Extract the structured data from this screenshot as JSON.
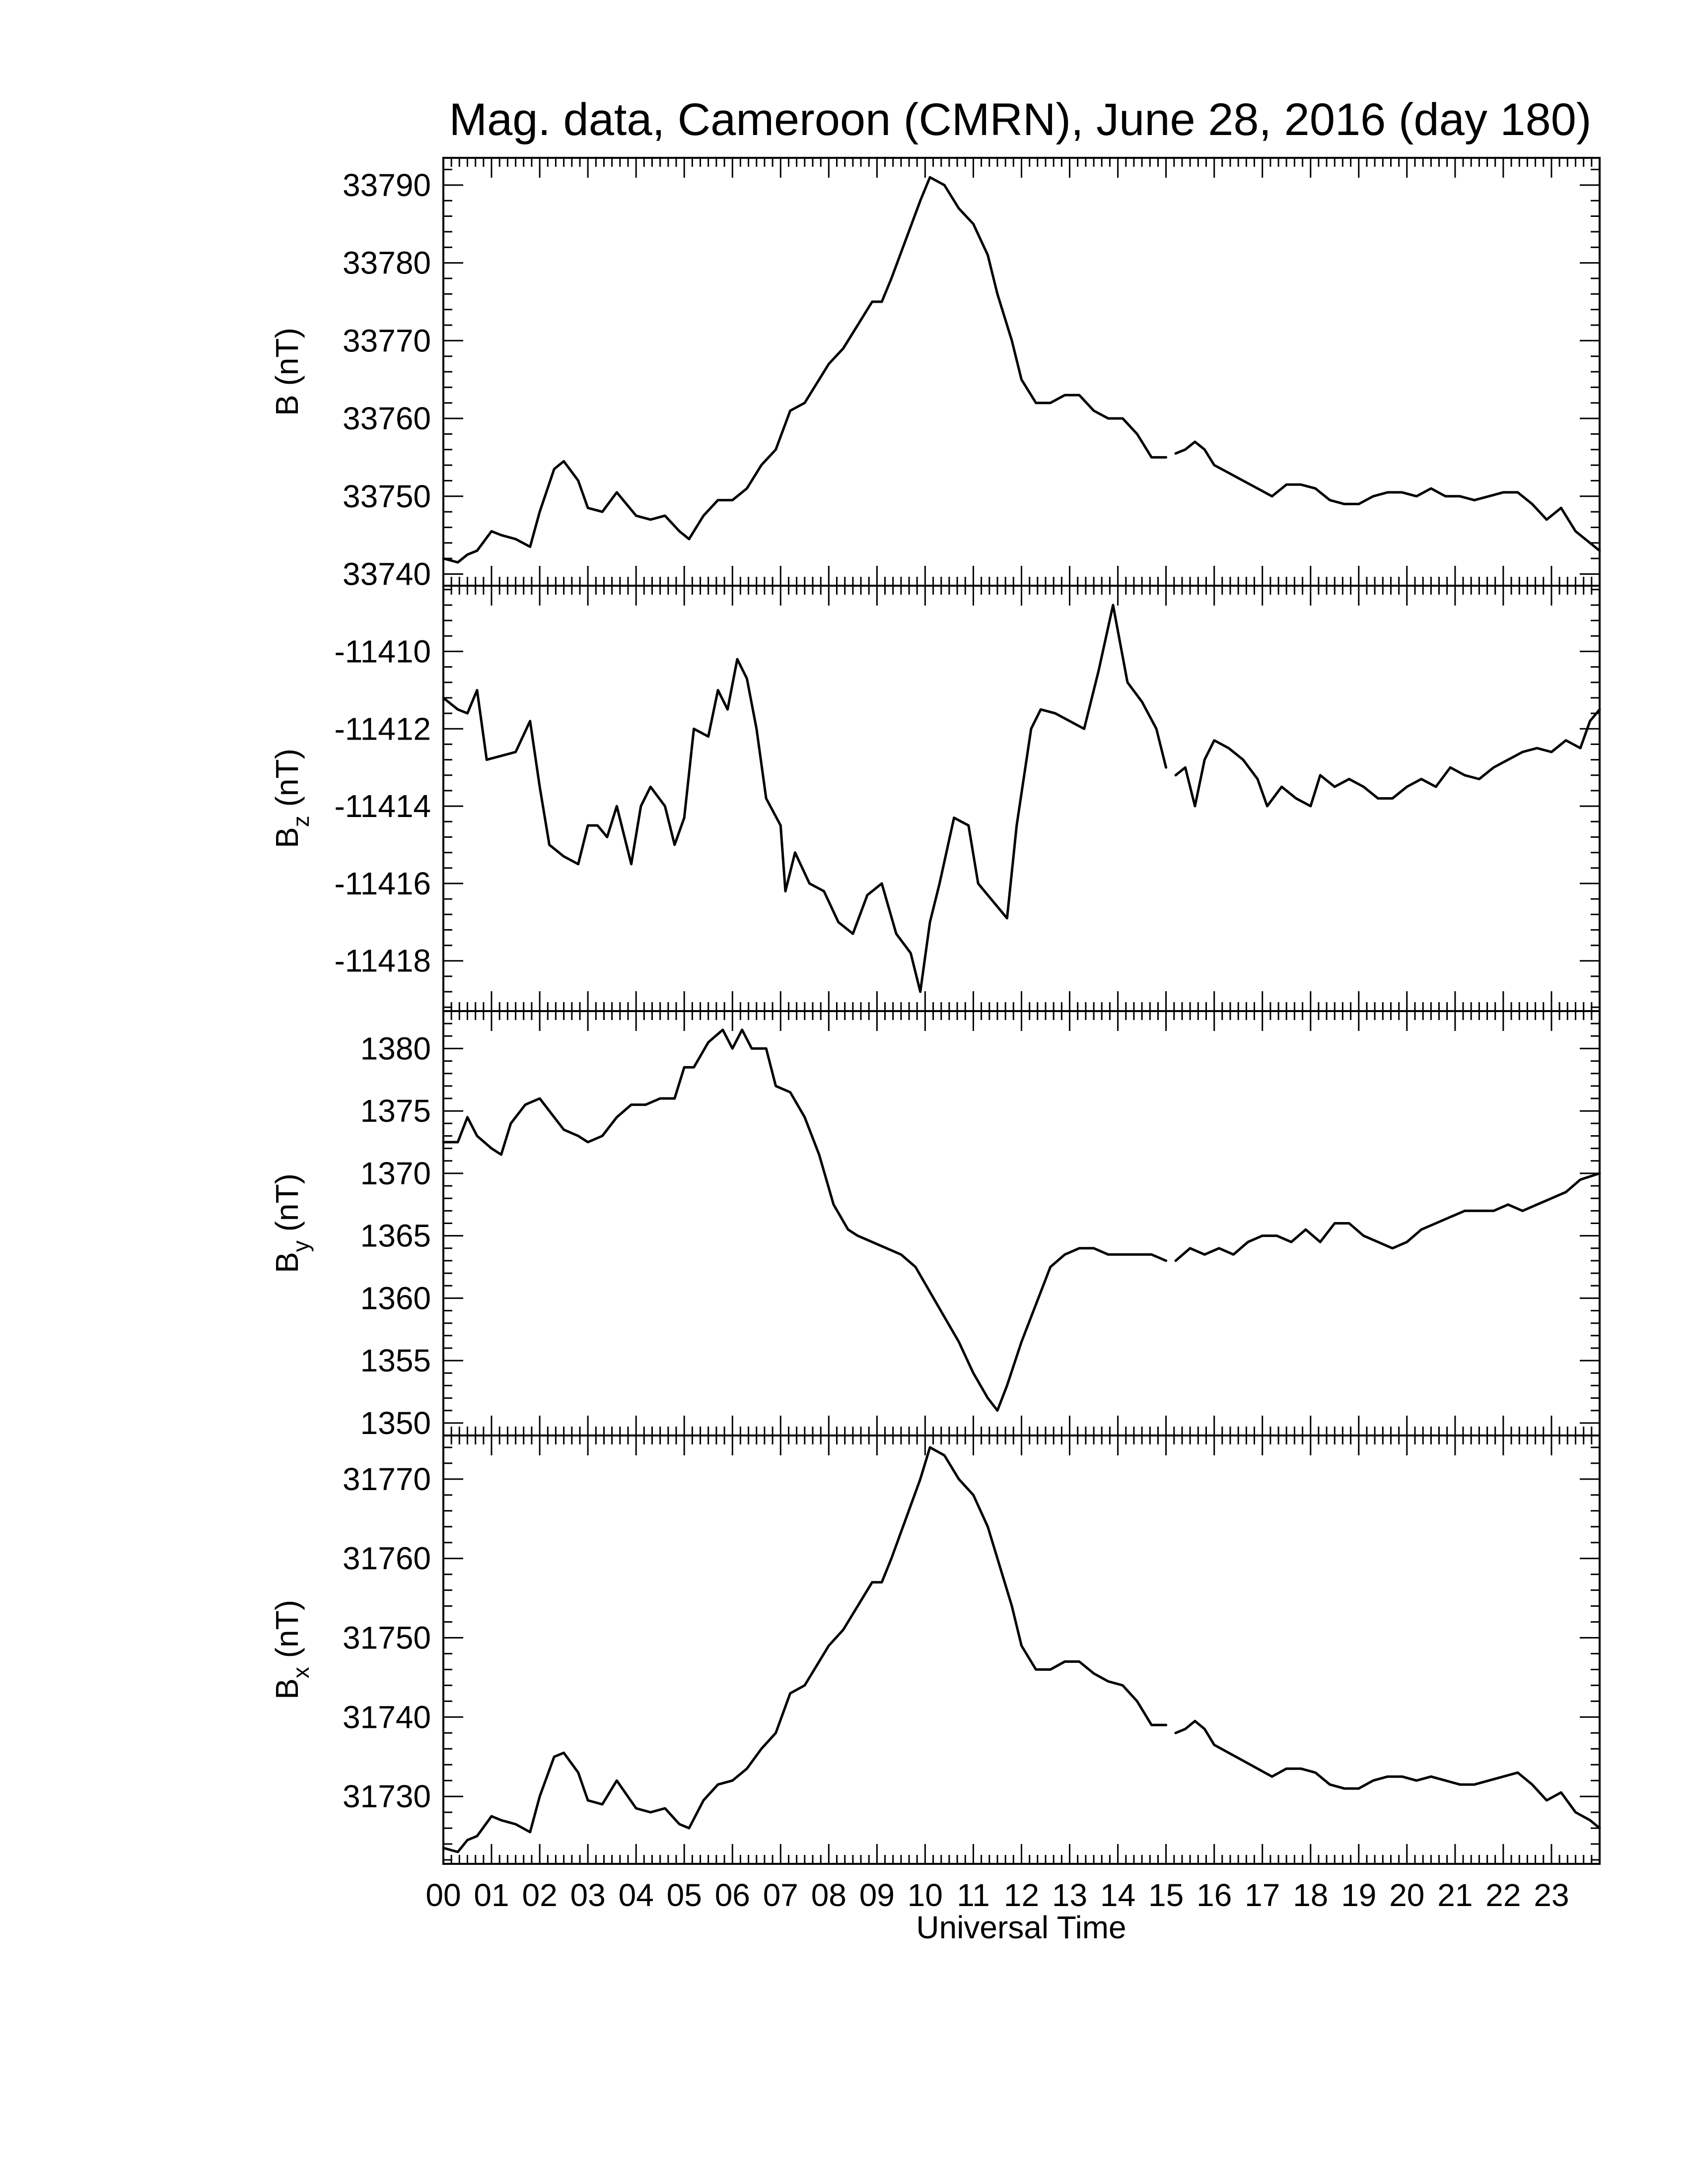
{
  "figure": {
    "title": "Mag. data, Cameroon (CMRN), June 28, 2016 (day 180)",
    "x_axis_label": "Universal Time",
    "x_tick_labels": [
      "00",
      "01",
      "02",
      "03",
      "04",
      "05",
      "06",
      "07",
      "08",
      "09",
      "10",
      "11",
      "12",
      "13",
      "14",
      "15",
      "16",
      "17",
      "18",
      "19",
      "20",
      "21",
      "22",
      "23"
    ]
  },
  "colors": {
    "trace": "#000000",
    "frame": "#000000",
    "background": "#ffffff"
  },
  "chart_data": [
    {
      "type": "line",
      "panel": "B",
      "ylabel_main": "B",
      "ylabel_sub": "",
      "ylabel_unit": "(nT)",
      "yticks": [
        33740,
        33750,
        33760,
        33770,
        33780,
        33790
      ],
      "ytick_labels": [
        "33740",
        "33750",
        "33760",
        "33770",
        "33780",
        "33790"
      ],
      "ylim": [
        33738.5,
        33793.5
      ],
      "xlim": [
        0,
        24
      ],
      "grid": false,
      "series": [
        {
          "x": [
            0,
            0.3,
            0.5,
            0.7,
            1.0,
            1.2,
            1.5,
            1.8,
            2.0,
            2.3,
            2.5,
            2.8,
            3.0,
            3.3,
            3.6,
            4.0,
            4.3,
            4.6,
            4.9,
            5.1,
            5.4,
            5.7,
            6.0,
            6.3,
            6.6,
            6.9,
            7.2,
            7.5,
            7.8,
            8.0,
            8.3,
            8.6,
            8.9,
            9.1,
            9.3,
            9.6,
            9.9,
            10.1,
            10.4,
            10.7,
            11.0,
            11.3,
            11.5,
            11.8,
            12.0,
            12.3,
            12.6,
            12.9,
            13.2,
            13.5,
            13.8,
            14.1,
            14.4,
            14.7,
            15.0
          ],
          "y": [
            33742,
            33741.5,
            33742.5,
            33743,
            33745.5,
            33745,
            33744.5,
            33743.5,
            33748,
            33753.5,
            33754.5,
            33752,
            33748.5,
            33748,
            33750.5,
            33747.5,
            33747,
            33747.5,
            33745.5,
            33744.5,
            33747.5,
            33749.5,
            33749.5,
            33751,
            33754,
            33756,
            33761,
            33762,
            33765,
            33767,
            33769,
            33772,
            33775,
            33775,
            33778,
            33783,
            33788,
            33791,
            33790,
            33787,
            33785,
            33781,
            33776,
            33770,
            33765,
            33762,
            33762,
            33763,
            33763,
            33761,
            33760,
            33760,
            33758,
            33755,
            33755
          ]
        },
        {
          "x": [
            15.2,
            15.4,
            15.6,
            15.8,
            16.0,
            16.3,
            16.6,
            16.9,
            17.2,
            17.5,
            17.8,
            18.1,
            18.4,
            18.7,
            19.0,
            19.3,
            19.6,
            19.9,
            20.2,
            20.5,
            20.8,
            21.1,
            21.4,
            21.7,
            22.0,
            22.3,
            22.6,
            22.9,
            23.2,
            23.5,
            23.8,
            24.0
          ],
          "y": [
            33755.5,
            33756,
            33757,
            33756,
            33754,
            33753,
            33752,
            33751,
            33750,
            33751.5,
            33751.5,
            33751,
            33749.5,
            33749,
            33749,
            33750,
            33750.5,
            33750.5,
            33750,
            33751,
            33750,
            33750,
            33749.5,
            33750,
            33750.5,
            33750.5,
            33749,
            33747,
            33748.5,
            33745.5,
            33744,
            33743
          ]
        }
      ]
    },
    {
      "type": "line",
      "panel": "Bz",
      "ylabel_main": "B",
      "ylabel_sub": "z",
      "ylabel_unit": "(nT)",
      "yticks": [
        -11410,
        -11412,
        -11414,
        -11416,
        -11418
      ],
      "ytick_labels": [
        "-11410",
        "-11412",
        "-11414",
        "-11416",
        "-11418"
      ],
      "ylim": [
        -11419.3,
        -11408.3
      ],
      "xlim": [
        0,
        24
      ],
      "grid": false,
      "series": [
        {
          "x": [
            0,
            0.3,
            0.5,
            0.7,
            0.9,
            1.2,
            1.5,
            1.8,
            2.0,
            2.2,
            2.5,
            2.8,
            3.0,
            3.2,
            3.4,
            3.6,
            3.9,
            4.1,
            4.3,
            4.6,
            4.8,
            5.0,
            5.2,
            5.5,
            5.7,
            5.9,
            6.1,
            6.3,
            6.5,
            6.7,
            7.0,
            7.1,
            7.3,
            7.6,
            7.9,
            8.2,
            8.5,
            8.8,
            9.1,
            9.4,
            9.7,
            9.9,
            10.1,
            10.3,
            10.6,
            10.9,
            11.1,
            11.3,
            11.5,
            11.7,
            11.9,
            12.2,
            12.4,
            12.7,
            13.0,
            13.3,
            13.6,
            13.9,
            14.2,
            14.5,
            14.8,
            15.0
          ],
          "y": [
            -11411.2,
            -11411.5,
            -11411.6,
            -11411.0,
            -11412.8,
            -11412.7,
            -11412.6,
            -11411.8,
            -11413.5,
            -11415.0,
            -11415.3,
            -11415.5,
            -11414.5,
            -11414.5,
            -11414.8,
            -11414.0,
            -11415.5,
            -11414.0,
            -11413.5,
            -11414.0,
            -11415.0,
            -11414.3,
            -11412.0,
            -11412.2,
            -11411.0,
            -11411.5,
            -11410.2,
            -11410.7,
            -11412.0,
            -11413.8,
            -11414.5,
            -11416.2,
            -11415.2,
            -11416.0,
            -11416.2,
            -11417.0,
            -11417.3,
            -11416.3,
            -11416.0,
            -11417.3,
            -11417.8,
            -11418.8,
            -11417.0,
            -11416.0,
            -11414.3,
            -11414.5,
            -11416.0,
            -11416.3,
            -11416.6,
            -11416.9,
            -11414.5,
            -11412.0,
            -11411.5,
            -11411.6,
            -11411.8,
            -11412.0,
            -11410.5,
            -11408.8,
            -11410.8,
            -11411.3,
            -11412.0,
            -11413.0
          ]
        },
        {
          "x": [
            15.2,
            15.4,
            15.6,
            15.8,
            16.0,
            16.3,
            16.6,
            16.9,
            17.1,
            17.4,
            17.7,
            18.0,
            18.2,
            18.5,
            18.8,
            19.1,
            19.4,
            19.7,
            20.0,
            20.3,
            20.6,
            20.9,
            21.2,
            21.5,
            21.8,
            22.1,
            22.4,
            22.7,
            23.0,
            23.3,
            23.6,
            23.8,
            24.0
          ],
          "y": [
            -11413.2,
            -11413.0,
            -11414.0,
            -11412.8,
            -11412.3,
            -11412.5,
            -11412.8,
            -11413.3,
            -11414.0,
            -11413.5,
            -11413.8,
            -11414.0,
            -11413.2,
            -11413.5,
            -11413.3,
            -11413.5,
            -11413.8,
            -11413.8,
            -11413.5,
            -11413.3,
            -11413.5,
            -11413.0,
            -11413.2,
            -11413.3,
            -11413.0,
            -11412.8,
            -11412.6,
            -11412.5,
            -11412.6,
            -11412.3,
            -11412.5,
            -11411.8,
            -11411.5
          ]
        }
      ]
    },
    {
      "type": "line",
      "panel": "By",
      "ylabel_main": "B",
      "ylabel_sub": "y",
      "ylabel_unit": "(nT)",
      "yticks": [
        1350,
        1355,
        1360,
        1365,
        1370,
        1375,
        1380
      ],
      "ytick_labels": [
        "1350",
        "1355",
        "1360",
        "1365",
        "1370",
        "1375",
        "1380"
      ],
      "ylim": [
        1349.0,
        1383.0
      ],
      "xlim": [
        0,
        24
      ],
      "grid": false,
      "series": [
        {
          "x": [
            0,
            0.3,
            0.5,
            0.7,
            1.0,
            1.2,
            1.4,
            1.7,
            2.0,
            2.2,
            2.5,
            2.8,
            3.0,
            3.3,
            3.6,
            3.9,
            4.2,
            4.5,
            4.8,
            5.0,
            5.2,
            5.5,
            5.8,
            6.0,
            6.2,
            6.4,
            6.7,
            6.9,
            7.2,
            7.5,
            7.8,
            8.1,
            8.4,
            8.6,
            8.9,
            9.2,
            9.5,
            9.8,
            10.1,
            10.4,
            10.7,
            11.0,
            11.3,
            11.5,
            11.7,
            12.0,
            12.3,
            12.6,
            12.9,
            13.2,
            13.5,
            13.8,
            14.1,
            14.4,
            14.7,
            15.0
          ],
          "y": [
            1372.5,
            1372.5,
            1374.5,
            1373.0,
            1372.0,
            1371.5,
            1374.0,
            1375.5,
            1376.0,
            1375.0,
            1373.5,
            1373.0,
            1372.5,
            1373.0,
            1374.5,
            1375.5,
            1375.5,
            1376.0,
            1376.0,
            1378.5,
            1378.5,
            1380.5,
            1381.5,
            1380.0,
            1381.5,
            1380.0,
            1380.0,
            1377.0,
            1376.5,
            1374.5,
            1371.5,
            1367.5,
            1365.5,
            1365.0,
            1364.5,
            1364.0,
            1363.5,
            1362.5,
            1360.5,
            1358.5,
            1356.5,
            1354.0,
            1352.0,
            1351.0,
            1353.0,
            1356.5,
            1359.5,
            1362.5,
            1363.5,
            1364.0,
            1364.0,
            1363.5,
            1363.5,
            1363.5,
            1363.5,
            1363.0
          ]
        },
        {
          "x": [
            15.2,
            15.5,
            15.8,
            16.1,
            16.4,
            16.7,
            17.0,
            17.3,
            17.6,
            17.9,
            18.2,
            18.5,
            18.8,
            19.1,
            19.4,
            19.7,
            20.0,
            20.3,
            20.6,
            20.9,
            21.2,
            21.5,
            21.8,
            22.1,
            22.4,
            22.7,
            23.0,
            23.3,
            23.6,
            24.0
          ],
          "y": [
            1363.0,
            1364.0,
            1363.5,
            1364.0,
            1363.5,
            1364.5,
            1365.0,
            1365.0,
            1364.5,
            1365.5,
            1364.5,
            1366.0,
            1366.0,
            1365.0,
            1364.5,
            1364.0,
            1364.5,
            1365.5,
            1366.0,
            1366.5,
            1367.0,
            1367.0,
            1367.0,
            1367.5,
            1367.0,
            1367.5,
            1368.0,
            1368.5,
            1369.5,
            1370.0
          ]
        }
      ]
    },
    {
      "type": "line",
      "panel": "Bx",
      "ylabel_main": "B",
      "ylabel_sub": "x",
      "ylabel_unit": "(nT)",
      "yticks": [
        31730,
        31740,
        31750,
        31760,
        31770
      ],
      "ytick_labels": [
        "31730",
        "31740",
        "31750",
        "31760",
        "31770"
      ],
      "ylim": [
        31721.5,
        31775.5
      ],
      "xlim": [
        0,
        24
      ],
      "grid": false,
      "series": [
        {
          "x": [
            0,
            0.3,
            0.5,
            0.7,
            1.0,
            1.2,
            1.5,
            1.8,
            2.0,
            2.3,
            2.5,
            2.8,
            3.0,
            3.3,
            3.6,
            4.0,
            4.3,
            4.6,
            4.9,
            5.1,
            5.4,
            5.7,
            6.0,
            6.3,
            6.6,
            6.9,
            7.2,
            7.5,
            7.8,
            8.0,
            8.3,
            8.6,
            8.9,
            9.1,
            9.3,
            9.6,
            9.9,
            10.1,
            10.4,
            10.7,
            11.0,
            11.3,
            11.5,
            11.8,
            12.0,
            12.3,
            12.6,
            12.9,
            13.2,
            13.5,
            13.8,
            14.1,
            14.4,
            14.7,
            15.0
          ],
          "y": [
            31723.5,
            31723,
            31724.5,
            31725,
            31727.5,
            31727,
            31726.5,
            31725.5,
            31730,
            31735,
            31735.5,
            31733,
            31729.5,
            31729,
            31732,
            31728.5,
            31728,
            31728.5,
            31726.5,
            31726,
            31729.5,
            31731.5,
            31732,
            31733.5,
            31736,
            31738,
            31743,
            31744,
            31747,
            31749,
            31751,
            31754,
            31757,
            31757,
            31760,
            31765,
            31770,
            31774,
            31773,
            31770,
            31768,
            31764,
            31760,
            31754,
            31749,
            31746,
            31746,
            31747,
            31747,
            31745.5,
            31744.5,
            31744,
            31742,
            31739,
            31739
          ]
        },
        {
          "x": [
            15.2,
            15.4,
            15.6,
            15.8,
            16.0,
            16.3,
            16.6,
            16.9,
            17.2,
            17.5,
            17.8,
            18.1,
            18.4,
            18.7,
            19.0,
            19.3,
            19.6,
            19.9,
            20.2,
            20.5,
            20.8,
            21.1,
            21.4,
            21.7,
            22.0,
            22.3,
            22.6,
            22.9,
            23.2,
            23.5,
            23.8,
            24.0
          ],
          "y": [
            31738,
            31738.5,
            31739.5,
            31738.5,
            31736.5,
            31735.5,
            31734.5,
            31733.5,
            31732.5,
            31733.5,
            31733.5,
            31733,
            31731.5,
            31731,
            31731,
            31732,
            31732.5,
            31732.5,
            31732,
            31732.5,
            31732,
            31731.5,
            31731.5,
            31732,
            31732.5,
            31733,
            31731.5,
            31729.5,
            31730.5,
            31728,
            31727,
            31726
          ]
        }
      ]
    }
  ]
}
